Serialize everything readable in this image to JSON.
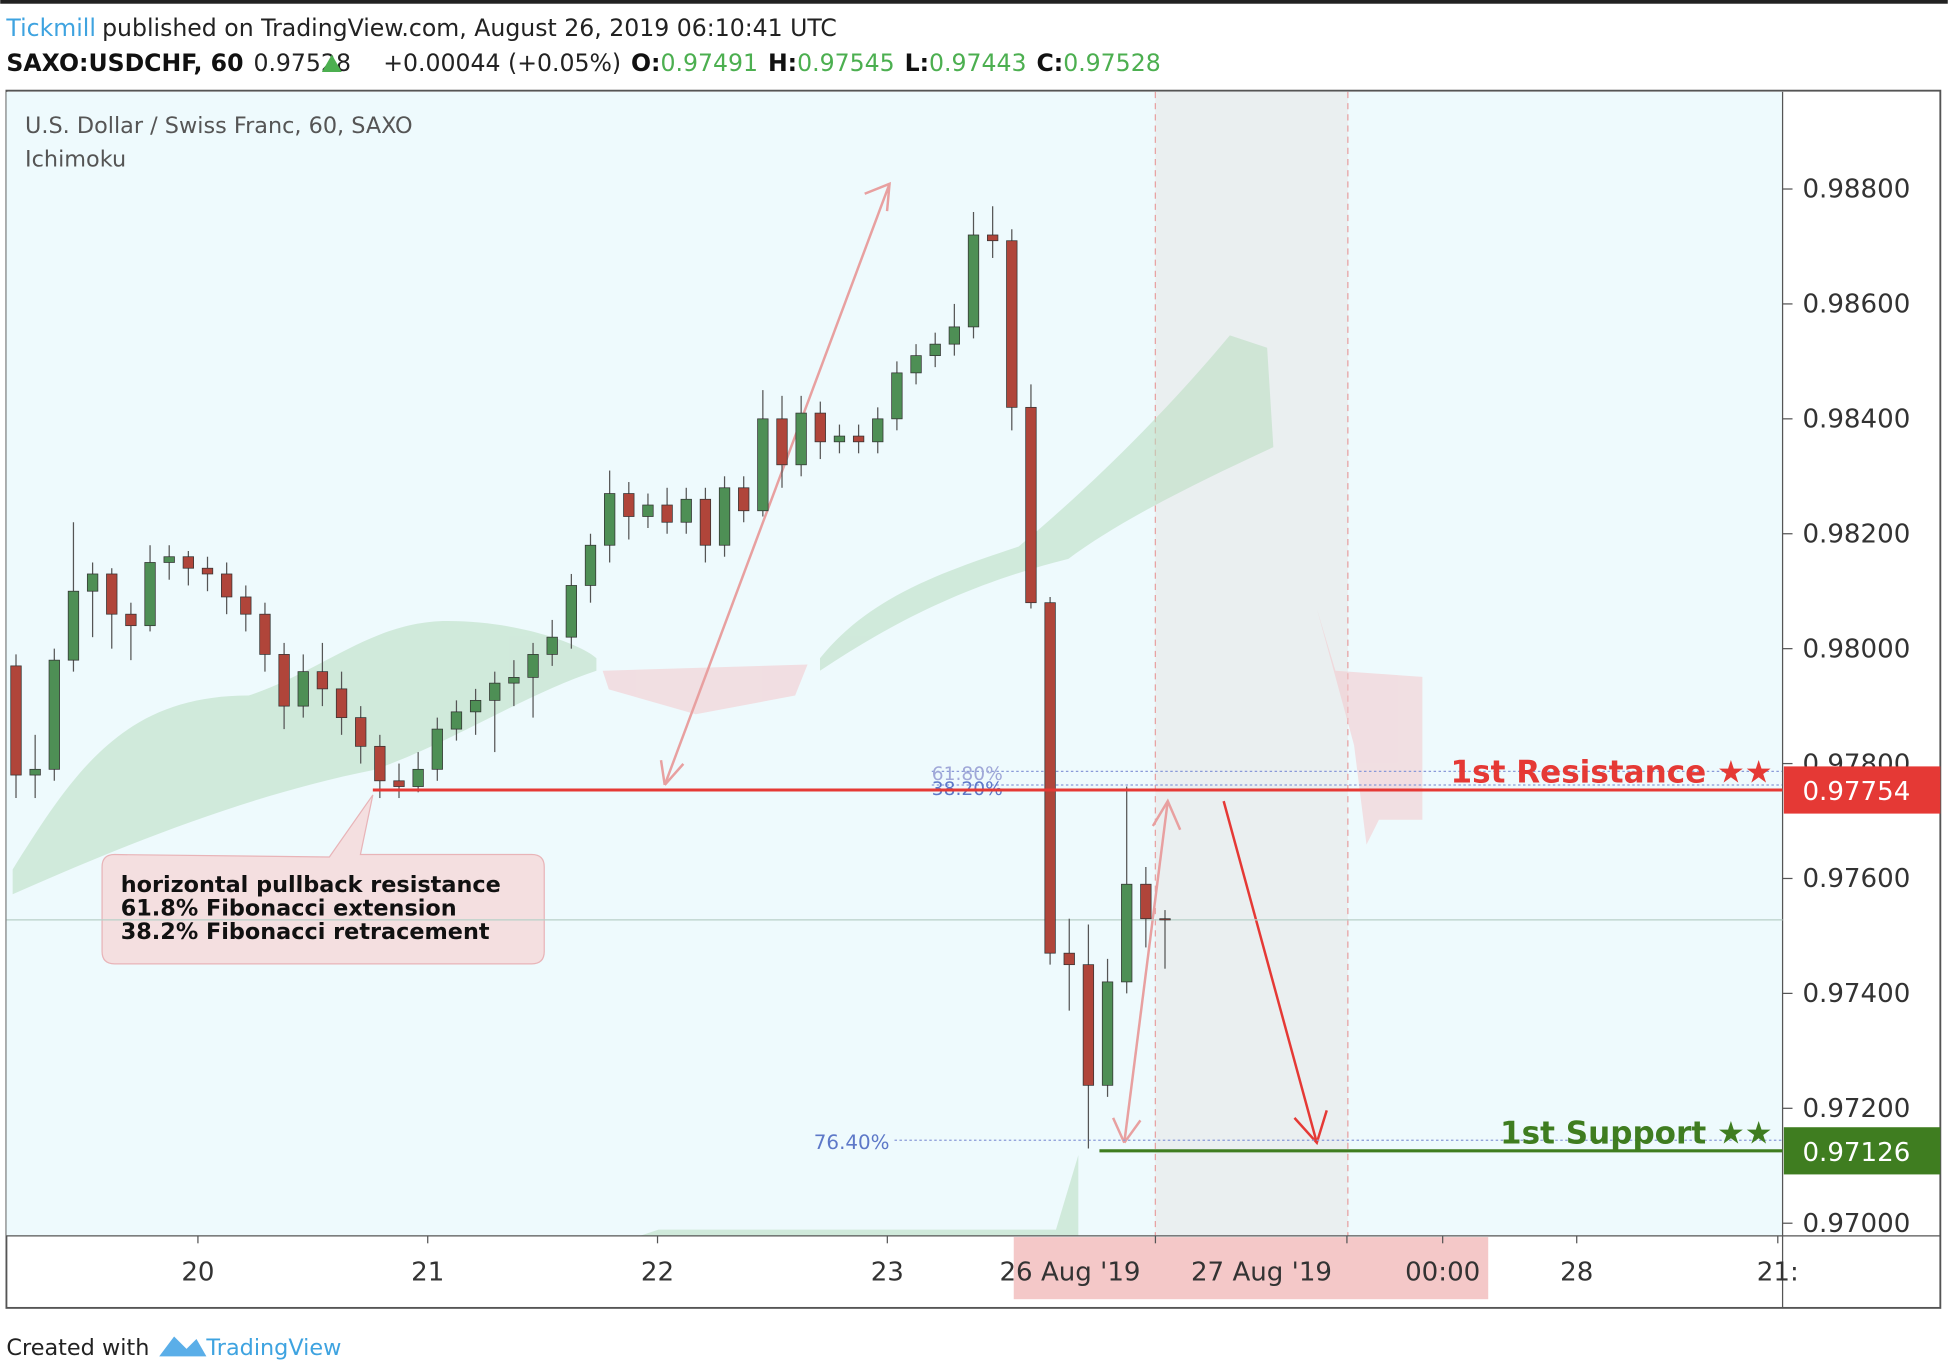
{
  "header": {
    "publisher": "Tickmill",
    "published": "published on TradingView.com, August 26, 2019 06:10:41 UTC",
    "symbol": "SAXO:USDCHF, 60",
    "price": "0.97528",
    "change": "+0.00044 (+0.05%)",
    "o_label": "O:",
    "o": "0.97491",
    "h_label": "H:",
    "h": "0.97545",
    "l_label": "L:",
    "l": "0.97443",
    "c_label": "C:",
    "c": "0.97528"
  },
  "footer": {
    "created": "Created with",
    "brand": "TradingView"
  },
  "chart_data": {
    "type": "candlestick",
    "title": "U.S. Dollar / Swiss Franc, 60, SAXO",
    "subtitle": "Ichimoku",
    "x": [
      1,
      3,
      5,
      7,
      9,
      11,
      13,
      15,
      17,
      19,
      21,
      23,
      25,
      27,
      29,
      31,
      33,
      35,
      37,
      39,
      41,
      43,
      45,
      47,
      49,
      51,
      53,
      55,
      57,
      59,
      61,
      63,
      65,
      67,
      69,
      71,
      73,
      75,
      77,
      79,
      81,
      83,
      85,
      87,
      89,
      91,
      93,
      95,
      97,
      99,
      101,
      103,
      105,
      107,
      109,
      111,
      113,
      115,
      117,
      119,
      121
    ],
    "open": [
      0.9797,
      0.9778,
      0.9779,
      0.9798,
      0.981,
      0.9813,
      0.9806,
      0.9804,
      0.9815,
      0.9816,
      0.9814,
      0.9813,
      0.9809,
      0.9806,
      0.9799,
      0.979,
      0.9796,
      0.9793,
      0.9788,
      0.9783,
      0.9777,
      0.9776,
      0.9779,
      0.9786,
      0.9789,
      0.9791,
      0.9794,
      0.9795,
      0.9799,
      0.9802,
      0.9811,
      0.9818,
      0.9827,
      0.9823,
      0.9825,
      0.9822,
      0.9826,
      0.9818,
      0.9828,
      0.9824,
      0.984,
      0.9832,
      0.9841,
      0.9836,
      0.9837,
      0.9836,
      0.984,
      0.9848,
      0.9851,
      0.9853,
      0.9856,
      0.9872,
      0.9871,
      0.9842,
      0.9808,
      0.9747,
      0.9745,
      0.9724,
      0.9742,
      0.9759,
      0.9753
    ],
    "high": [
      0.9799,
      0.9785,
      0.98,
      0.9822,
      0.9815,
      0.9814,
      0.9808,
      0.9818,
      0.9818,
      0.9817,
      0.9816,
      0.9815,
      0.9811,
      0.9808,
      0.9801,
      0.9799,
      0.9801,
      0.9796,
      0.979,
      0.9785,
      0.978,
      0.9782,
      0.9788,
      0.9791,
      0.9793,
      0.9796,
      0.9798,
      0.9801,
      0.9805,
      0.9813,
      0.982,
      0.9831,
      0.9829,
      0.9827,
      0.9828,
      0.9828,
      0.9828,
      0.983,
      0.983,
      0.9845,
      0.9844,
      0.9844,
      0.9843,
      0.9839,
      0.9839,
      0.9842,
      0.985,
      0.9853,
      0.9855,
      0.986,
      0.9876,
      0.9877,
      0.9873,
      0.9846,
      0.9809,
      0.9753,
      0.9752,
      0.9746,
      0.9776,
      0.9762,
      0.97545
    ],
    "low": [
      0.9774,
      0.9774,
      0.9777,
      0.9796,
      0.9802,
      0.98,
      0.9798,
      0.9803,
      0.9812,
      0.9811,
      0.981,
      0.9806,
      0.9803,
      0.9796,
      0.9786,
      0.9788,
      0.979,
      0.9785,
      0.978,
      0.9774,
      0.9774,
      0.9775,
      0.9777,
      0.9784,
      0.9785,
      0.9782,
      0.979,
      0.9788,
      0.9797,
      0.98,
      0.9808,
      0.9815,
      0.9819,
      0.9821,
      0.982,
      0.982,
      0.9815,
      0.9816,
      0.9822,
      0.9823,
      0.9828,
      0.983,
      0.9833,
      0.9834,
      0.9834,
      0.9834,
      0.9838,
      0.9846,
      0.9849,
      0.9851,
      0.9854,
      0.9868,
      0.9838,
      0.9807,
      0.9745,
      0.9737,
      0.9713,
      0.9722,
      0.974,
      0.9748,
      0.97443
    ],
    "close": [
      0.9778,
      0.9779,
      0.9798,
      0.981,
      0.9813,
      0.9806,
      0.9804,
      0.9815,
      0.9816,
      0.9814,
      0.9813,
      0.9809,
      0.9806,
      0.9799,
      0.979,
      0.9796,
      0.9793,
      0.9788,
      0.9783,
      0.9777,
      0.9776,
      0.9779,
      0.9786,
      0.9789,
      0.9791,
      0.9794,
      0.9795,
      0.9799,
      0.9802,
      0.9811,
      0.9818,
      0.9827,
      0.9823,
      0.9825,
      0.9822,
      0.9826,
      0.9818,
      0.9828,
      0.9824,
      0.984,
      0.9832,
      0.9841,
      0.9836,
      0.9837,
      0.9836,
      0.984,
      0.9848,
      0.9851,
      0.9853,
      0.9856,
      0.9872,
      0.9871,
      0.9842,
      0.9808,
      0.9747,
      0.9745,
      0.9724,
      0.9742,
      0.9759,
      0.9753,
      0.97528
    ],
    "up_color": "#4e8f55",
    "down_color": "#b0453a",
    "xlim": [
      0,
      185.5
    ],
    "xticks": [
      {
        "value": 20,
        "label": "20"
      },
      {
        "value": 44,
        "label": "21"
      },
      {
        "value": 68,
        "label": "22"
      },
      {
        "value": 92,
        "label": "23"
      },
      {
        "value": 120,
        "label": "26 Aug '19"
      },
      {
        "value": 140,
        "label": "27 Aug '19"
      },
      {
        "value": 150,
        "label": "00:00"
      },
      {
        "value": 164,
        "label": "28"
      },
      {
        "value": 185,
        "label": "21:"
      }
    ],
    "ylim": [
      0.96978,
      0.98969
    ],
    "yticks": [
      {
        "value": 0.97,
        "label": "0.97000"
      },
      {
        "value": 0.972,
        "label": "0.97200"
      },
      {
        "value": 0.974,
        "label": "0.97400"
      },
      {
        "value": 0.976,
        "label": "0.97600"
      },
      {
        "value": 0.978,
        "label": "0.97800"
      },
      {
        "value": 0.98,
        "label": "0.98000"
      },
      {
        "value": 0.982,
        "label": "0.98200"
      },
      {
        "value": 0.984,
        "label": "0.98400"
      },
      {
        "value": 0.986,
        "label": "0.98600"
      },
      {
        "value": 0.988,
        "label": "0.98800"
      }
    ],
    "levels": [
      {
        "name": "1st Resistance ★★",
        "value": 0.97754,
        "value_label": "0.97754",
        "color": "#e53935"
      },
      {
        "name": "1st Support ★★",
        "value": 0.97126,
        "value_label": "0.97126",
        "color": "#3f7d20"
      }
    ],
    "fib_labels": [
      "61.80%",
      "38.20%",
      "76.40%"
    ],
    "annotation": [
      "horizontal pullback resistance",
      "61.8% Fibonacci extension",
      "38.2% Fibonacci retracement"
    ]
  }
}
